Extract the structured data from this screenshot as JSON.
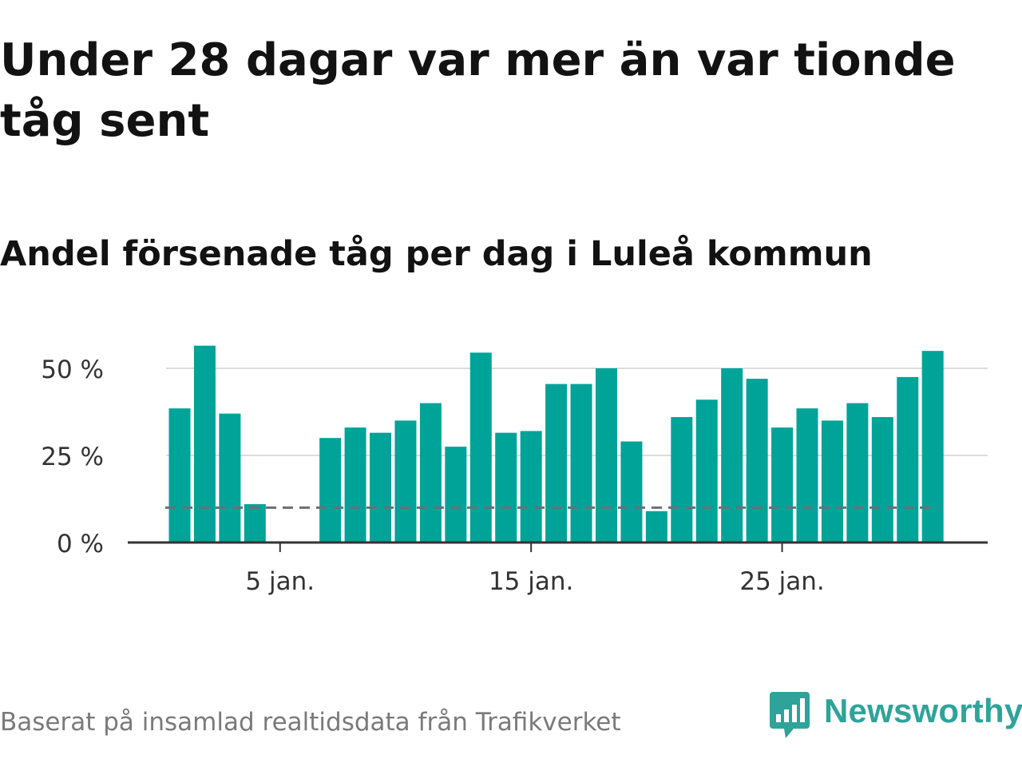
{
  "title": "Under 28 dagar var mer än var tionde tåg sent",
  "subtitle": "Andel försenade tåg per dag i Luleå kommun",
  "source": "Baserat på insamlad realtidsdata från Trafikverket",
  "brand": {
    "name": "Newsworthy",
    "logo_icon": "bar-chart-speech-bubble-icon"
  },
  "colors": {
    "bar": "#00a398",
    "reference_line": "#6e6e78",
    "grid": "#dcdcdc",
    "brand": "#2fa39a"
  },
  "chart_data": {
    "type": "bar",
    "title": "Andel försenade tåg per dag i Luleå kommun",
    "x_unit": "day of January",
    "categories": [
      1,
      2,
      3,
      4,
      5,
      6,
      7,
      8,
      9,
      10,
      11,
      12,
      13,
      14,
      15,
      16,
      17,
      18,
      19,
      20,
      21,
      22,
      23,
      24,
      25,
      26,
      27,
      28,
      29,
      30,
      31
    ],
    "values": [
      38.5,
      56.5,
      37,
      11,
      null,
      null,
      30,
      33,
      31.5,
      35,
      40,
      27.5,
      54.5,
      31.5,
      32,
      45.5,
      45.5,
      50,
      29,
      9,
      36,
      41,
      50,
      47,
      33,
      38.5,
      35,
      40,
      36,
      47.5,
      55
    ],
    "ylim": [
      0,
      60
    ],
    "yticks": [
      {
        "value": 0,
        "label": "0 %"
      },
      {
        "value": 25,
        "label": "25 %"
      },
      {
        "value": 50,
        "label": "50 %"
      }
    ],
    "xticks": [
      {
        "value": 5,
        "label": "5 jan."
      },
      {
        "value": 15,
        "label": "15 jan."
      },
      {
        "value": 25,
        "label": "25 jan."
      }
    ],
    "reference_line": {
      "value": 10,
      "style": "dashed"
    },
    "grid": true,
    "legend": false
  }
}
